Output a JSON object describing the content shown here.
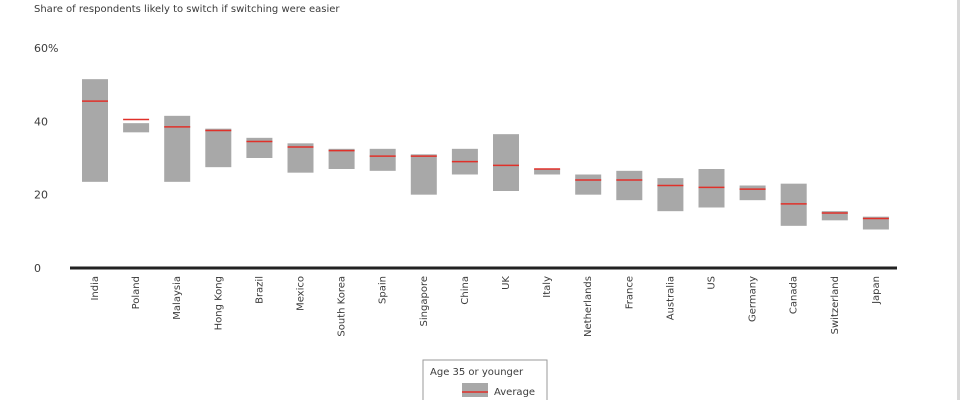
{
  "chart_data": {
    "type": "bar",
    "subtitle": "Share of respondents likely to switch if switching were easier",
    "y_unit_label": "60%",
    "y_ticks": [
      0,
      20,
      40,
      60
    ],
    "ylim": [
      0,
      60
    ],
    "categories": [
      "India",
      "Poland",
      "Malaysia",
      "Hong Kong",
      "Brazil",
      "Mexico",
      "South Korea",
      "Spain",
      "Singapore",
      "China",
      "UK",
      "Italy",
      "Netherlands",
      "France",
      "Australia",
      "US",
      "Germany",
      "Canada",
      "Switzerland",
      "Japan"
    ],
    "series": [
      {
        "name": "Age 35 or younger",
        "kind": "range",
        "low": [
          23.5,
          37.0,
          23.5,
          27.5,
          30.0,
          26.0,
          27.0,
          26.5,
          20.0,
          25.5,
          21.0,
          25.5,
          20.0,
          18.5,
          15.5,
          16.5,
          18.5,
          11.5,
          13.0,
          10.5
        ],
        "high": [
          51.5,
          39.5,
          41.5,
          38.0,
          35.5,
          34.0,
          32.5,
          32.5,
          31.0,
          32.5,
          36.5,
          27.0,
          25.5,
          26.5,
          24.5,
          27.0,
          22.5,
          23.0,
          15.5,
          14.0
        ]
      },
      {
        "name": "Average",
        "kind": "marker",
        "values": [
          45.5,
          40.5,
          38.5,
          37.5,
          34.5,
          33.0,
          32.0,
          30.5,
          30.5,
          29.0,
          28.0,
          27.0,
          24.0,
          24.0,
          22.5,
          22.0,
          21.5,
          17.5,
          15.0,
          13.5
        ]
      }
    ],
    "colors": {
      "range": "#a8a8a8",
      "average": "#e0312a",
      "axis": "#222222",
      "text": "#3c3c3c"
    },
    "legend": {
      "placement": "bottom-center",
      "entries": [
        "Age 35 or younger",
        "Average"
      ]
    },
    "grid": false
  }
}
